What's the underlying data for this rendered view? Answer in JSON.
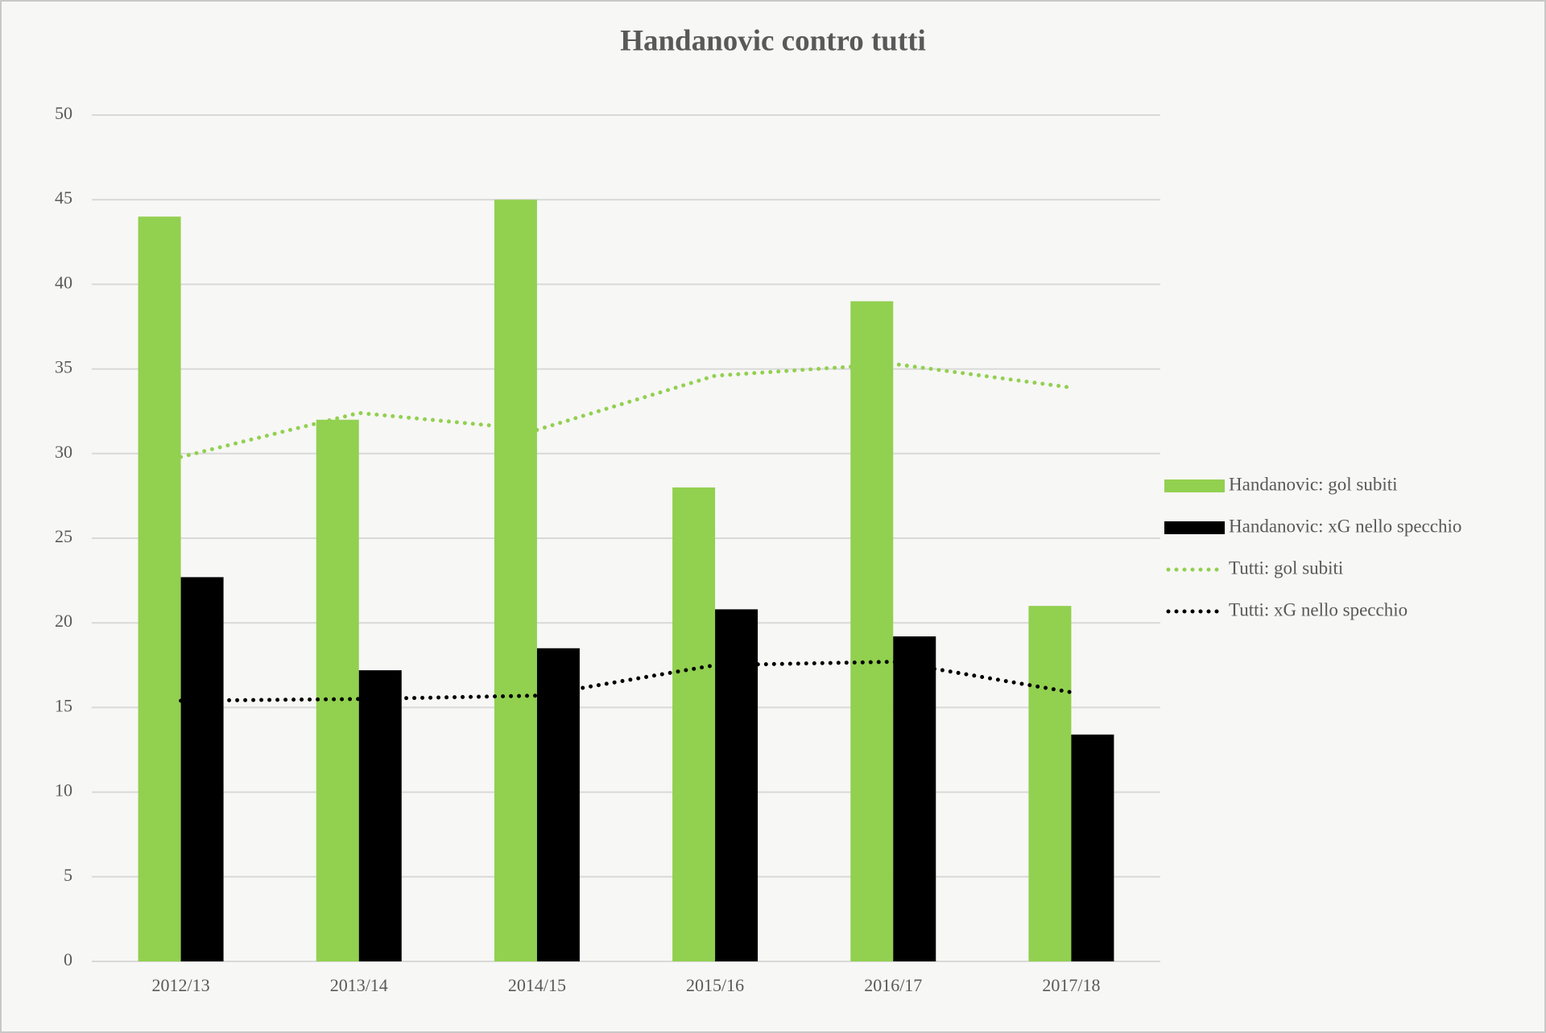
{
  "chart_data": {
    "type": "bar",
    "title": "Handanovic contro tutti",
    "categories": [
      "2012/13",
      "2013/14",
      "2014/15",
      "2015/16",
      "2016/17",
      "2017/18"
    ],
    "series": [
      {
        "name": "Handanovic: gol subiti",
        "type": "bar",
        "color": "#92d050",
        "values": [
          44,
          32,
          45,
          28,
          39,
          21
        ]
      },
      {
        "name": "Handanovic: xG nello specchio",
        "type": "bar",
        "color": "#000000",
        "values": [
          22.7,
          17.2,
          18.5,
          20.8,
          19.2,
          13.4
        ]
      },
      {
        "name": "Tutti: gol subiti",
        "type": "line",
        "color": "#92d050",
        "values": [
          29.8,
          32.4,
          31.4,
          34.6,
          35.3,
          33.9
        ]
      },
      {
        "name": "Tutti: xG nello specchio",
        "type": "line",
        "color": "#000000",
        "values": [
          15.4,
          15.5,
          15.7,
          17.5,
          17.7,
          15.9
        ]
      }
    ],
    "ylim": [
      0,
      50
    ],
    "yticks": [
      0,
      5,
      10,
      15,
      20,
      25,
      30,
      35,
      40,
      45,
      50
    ],
    "grid": true,
    "legend": "right"
  }
}
